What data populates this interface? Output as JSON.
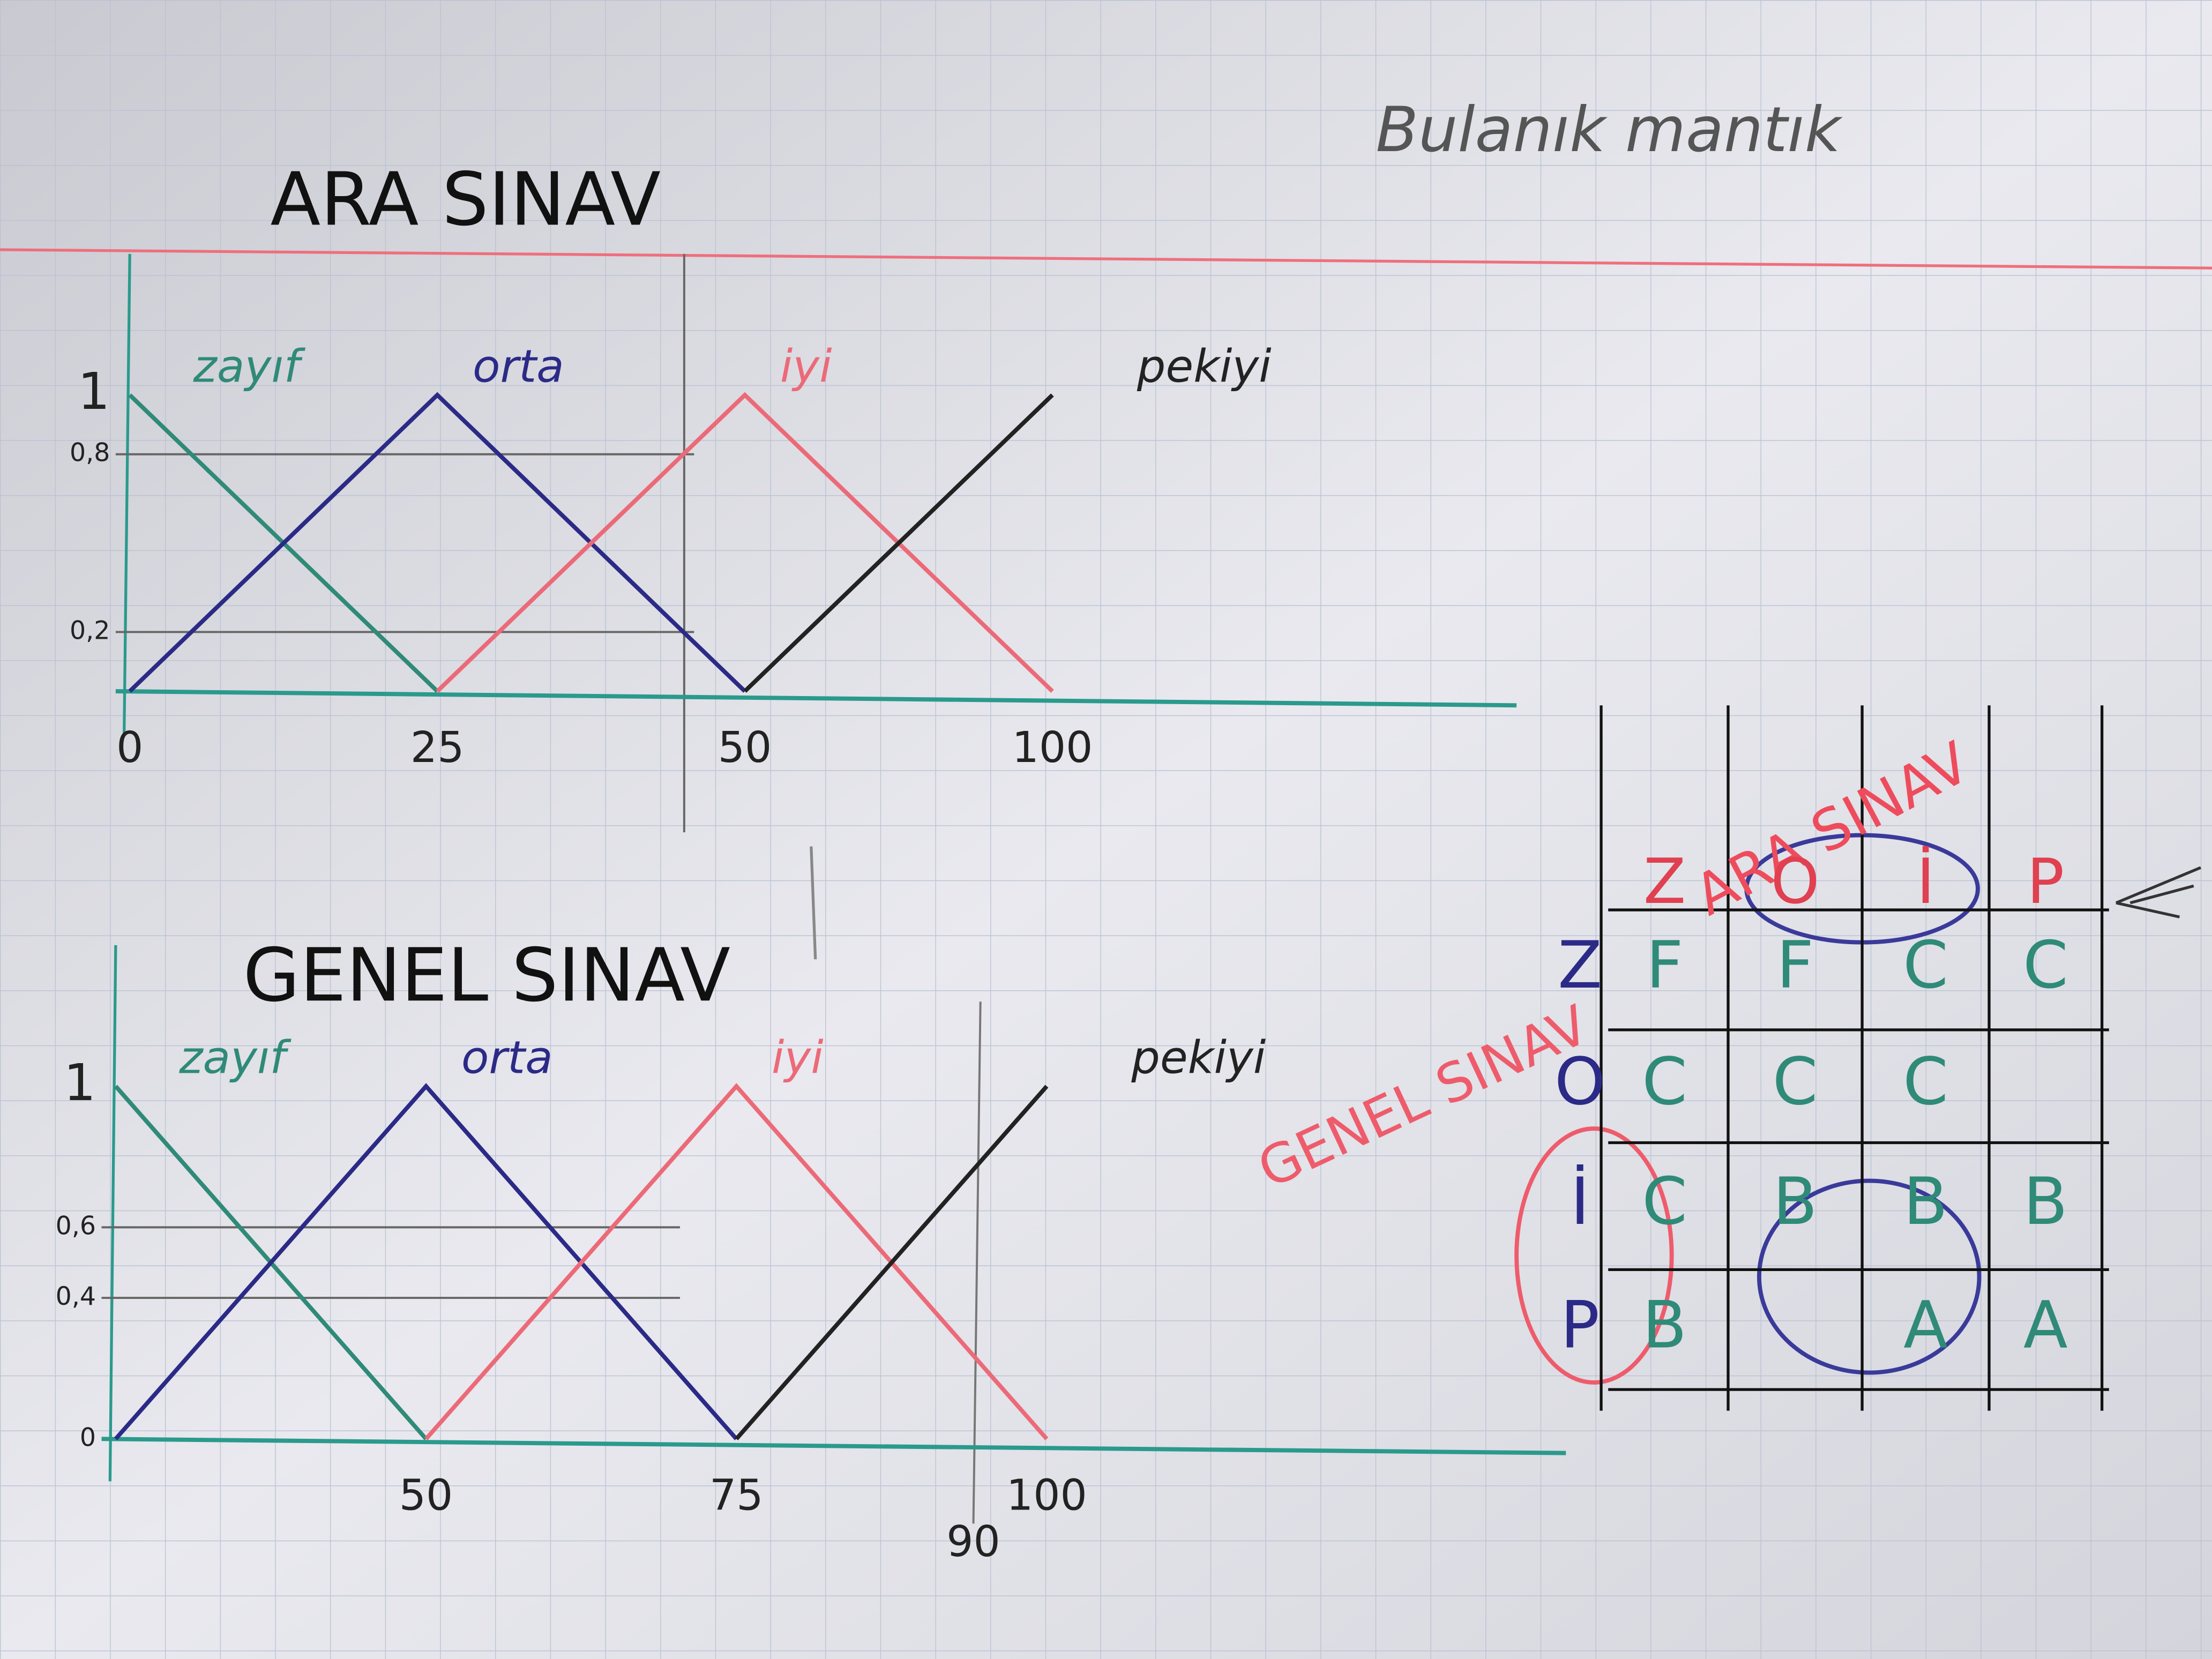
{
  "header": {
    "title": "Bulanık mantık"
  },
  "chart_data": [
    {
      "type": "line",
      "title": "ARA SINAV",
      "categories": [
        "0",
        "25",
        "50",
        "100"
      ],
      "series": [
        {
          "name": "zayıf",
          "color": "#2f8a78",
          "values": [
            1,
            0,
            null,
            null
          ]
        },
        {
          "name": "orta",
          "color": "#2b2a86",
          "values": [
            0,
            1,
            0,
            null
          ]
        },
        {
          "name": "iyi",
          "color": "#ec6a78",
          "values": [
            null,
            0,
            1,
            0
          ]
        },
        {
          "name": "pekiyi",
          "color": "#222222",
          "values": [
            null,
            null,
            0,
            1
          ]
        }
      ],
      "ylim": [
        0,
        1
      ],
      "yticks": [
        {
          "value": 0.2,
          "label": "0,2"
        },
        {
          "value": 0.8,
          "label": "0,8"
        },
        1
      ],
      "grid": true
    },
    {
      "type": "line",
      "title": "GENEL SINAV",
      "categories": [
        null,
        "50",
        "75",
        "100"
      ],
      "series": [
        {
          "name": "zayıf",
          "color": "#2f8a78",
          "values": [
            1,
            0,
            null,
            null
          ]
        },
        {
          "name": "orta",
          "color": "#2b2a86",
          "values": [
            0,
            1,
            0,
            null
          ]
        },
        {
          "name": "iyi",
          "color": "#ec6a78",
          "values": [
            null,
            0,
            1,
            0
          ]
        },
        {
          "name": "pekiyi",
          "color": "#222222",
          "values": [
            null,
            null,
            0,
            1
          ]
        }
      ],
      "ylim": [
        0,
        1
      ],
      "yticks": [
        0,
        {
          "value": 0.4,
          "label": "0,4"
        },
        {
          "value": 0.6,
          "label": "0,6"
        },
        1
      ],
      "annotations": [
        "90"
      ],
      "grid": true
    }
  ],
  "table": {
    "column_title": "ARA SINAV",
    "row_title": "GENEL SINAV",
    "columns": [
      "Z",
      "O",
      "İ",
      "P"
    ],
    "rows": [
      [
        "Z",
        "F",
        "F",
        "C",
        "C"
      ],
      [
        "O",
        "C",
        "C",
        "C",
        null
      ],
      [
        "İ",
        "C",
        "B",
        "B",
        "B"
      ],
      [
        "P",
        "B",
        null,
        "A",
        "A"
      ]
    ]
  }
}
